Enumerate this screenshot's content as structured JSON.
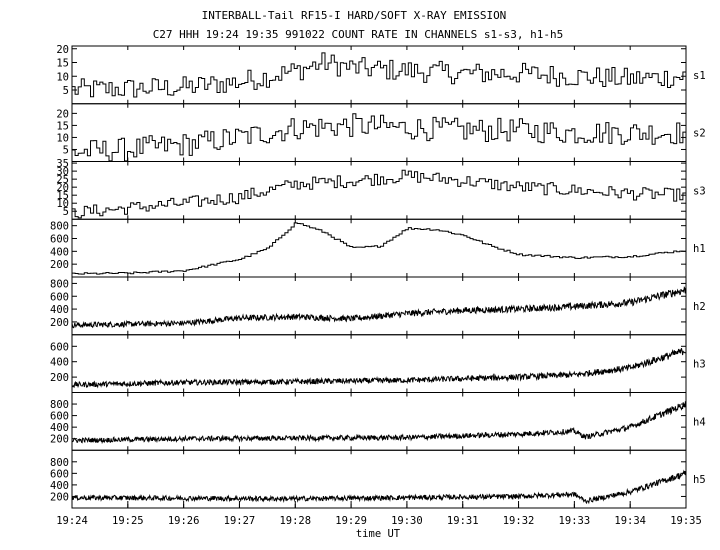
{
  "title": "INTERBALL-Tail RF15-I HARD/SOFT X-RAY EMISSION",
  "subtitle": "C27 HHH 19:24 19:35 991022  COUNT RATE IN CHANNELS s1-s3, h1-h5",
  "chart_data": {
    "type": "line",
    "title": "INTERBALL-Tail RF15-I HARD/SOFT X-RAY EMISSION",
    "subtitle": "C27 HHH 19:24 19:35 991022  COUNT RATE IN CHANNELS s1-s3, h1-h5",
    "xlabel": "time UT",
    "x_ticks": [
      "19:24",
      "19:25",
      "19:26",
      "19:27",
      "19:28",
      "19:29",
      "19:30",
      "19:31",
      "19:32",
      "19:33",
      "19:34",
      "19:35"
    ],
    "xlim": [
      "19:24",
      "19:35"
    ],
    "panels": [
      {
        "name": "s1",
        "ylim": [
          0,
          21
        ],
        "yticks": [
          5,
          10,
          15,
          20
        ],
        "style": "step",
        "shape": [
          [
            "19:24",
            5
          ],
          [
            "19:26",
            6
          ],
          [
            "19:27",
            8
          ],
          [
            "19:28",
            12
          ],
          [
            "19:28.5",
            15
          ],
          [
            "19:29",
            13
          ],
          [
            "19:30",
            12
          ],
          [
            "19:31",
            11
          ],
          [
            "19:32",
            11
          ],
          [
            "19:33",
            10
          ],
          [
            "19:34",
            9
          ],
          [
            "19:35",
            10
          ]
        ],
        "noise": 4
      },
      {
        "name": "s2",
        "ylim": [
          0,
          24
        ],
        "yticks": [
          5,
          10,
          15,
          20
        ],
        "style": "step",
        "shape": [
          [
            "19:24",
            4
          ],
          [
            "19:25",
            5
          ],
          [
            "19:26",
            7
          ],
          [
            "19:27",
            10
          ],
          [
            "19:28",
            14
          ],
          [
            "19:29",
            15
          ],
          [
            "19:30",
            14
          ],
          [
            "19:31",
            13
          ],
          [
            "19:32",
            13
          ],
          [
            "19:33",
            12
          ],
          [
            "19:34",
            12
          ],
          [
            "19:35",
            12
          ]
        ],
        "noise": 5
      },
      {
        "name": "s3",
        "ylim": [
          0,
          36
        ],
        "yticks": [
          5,
          10,
          15,
          20,
          25,
          30,
          35
        ],
        "style": "step",
        "shape": [
          [
            "19:24",
            4
          ],
          [
            "19:25",
            7
          ],
          [
            "19:26",
            10
          ],
          [
            "19:27",
            14
          ],
          [
            "19:28",
            22
          ],
          [
            "19:29",
            24
          ],
          [
            "19:30",
            27
          ],
          [
            "19:31",
            24
          ],
          [
            "19:32",
            20
          ],
          [
            "19:33",
            18
          ],
          [
            "19:34",
            16
          ],
          [
            "19:35",
            15
          ]
        ],
        "noise": 4
      },
      {
        "name": "h1",
        "ylim": [
          0,
          900
        ],
        "yticks": [
          200,
          400,
          600,
          800
        ],
        "style": "step",
        "shape": [
          [
            "19:24",
            50
          ],
          [
            "19:25",
            60
          ],
          [
            "19:26",
            100
          ],
          [
            "19:27",
            280
          ],
          [
            "19:27.5",
            450
          ],
          [
            "19:28",
            850
          ],
          [
            "19:28.5",
            700
          ],
          [
            "19:29",
            450
          ],
          [
            "19:29.5",
            480
          ],
          [
            "19:30",
            760
          ],
          [
            "19:30.5",
            740
          ],
          [
            "19:31",
            650
          ],
          [
            "19:31.5",
            480
          ],
          [
            "19:32",
            350
          ],
          [
            "19:33",
            300
          ],
          [
            "19:34",
            320
          ],
          [
            "19:35",
            420
          ]
        ],
        "noise": 15
      },
      {
        "name": "h2",
        "ylim": [
          0,
          900
        ],
        "yticks": [
          200,
          400,
          600,
          800
        ],
        "style": "dense",
        "shape": [
          [
            "19:24",
            150
          ],
          [
            "19:26",
            180
          ],
          [
            "19:27",
            260
          ],
          [
            "19:28",
            280
          ],
          [
            "19:29",
            250
          ],
          [
            "19:30",
            330
          ],
          [
            "19:31",
            380
          ],
          [
            "19:32",
            400
          ],
          [
            "19:33",
            440
          ],
          [
            "19:34",
            500
          ],
          [
            "19:35",
            700
          ]
        ],
        "noise": 60
      },
      {
        "name": "h3",
        "ylim": [
          0,
          750
        ],
        "yticks": [
          200,
          400,
          600
        ],
        "style": "dense",
        "shape": [
          [
            "19:24",
            100
          ],
          [
            "19:26",
            130
          ],
          [
            "19:28",
            140
          ],
          [
            "19:30",
            160
          ],
          [
            "19:31",
            180
          ],
          [
            "19:32",
            200
          ],
          [
            "19:33",
            230
          ],
          [
            "19:34",
            320
          ],
          [
            "19:35",
            550
          ]
        ],
        "noise": 50
      },
      {
        "name": "h4",
        "ylim": [
          0,
          1000
        ],
        "yticks": [
          200,
          400,
          600,
          800
        ],
        "style": "dense",
        "shape": [
          [
            "19:24",
            170
          ],
          [
            "19:26",
            200
          ],
          [
            "19:28",
            210
          ],
          [
            "19:30",
            220
          ],
          [
            "19:32",
            280
          ],
          [
            "19:33",
            330
          ],
          [
            "19:33.2",
            230
          ],
          [
            "19:34",
            400
          ],
          [
            "19:35",
            800
          ]
        ],
        "noise": 60
      },
      {
        "name": "h5",
        "ylim": [
          0,
          1000
        ],
        "yticks": [
          200,
          400,
          600,
          800
        ],
        "style": "dense",
        "shape": [
          [
            "19:24",
            180
          ],
          [
            "19:26",
            170
          ],
          [
            "19:28",
            160
          ],
          [
            "19:30",
            180
          ],
          [
            "19:32",
            200
          ],
          [
            "19:33",
            240
          ],
          [
            "19:33.2",
            120
          ],
          [
            "19:34",
            280
          ],
          [
            "19:35",
            600
          ]
        ],
        "noise": 60
      }
    ]
  }
}
